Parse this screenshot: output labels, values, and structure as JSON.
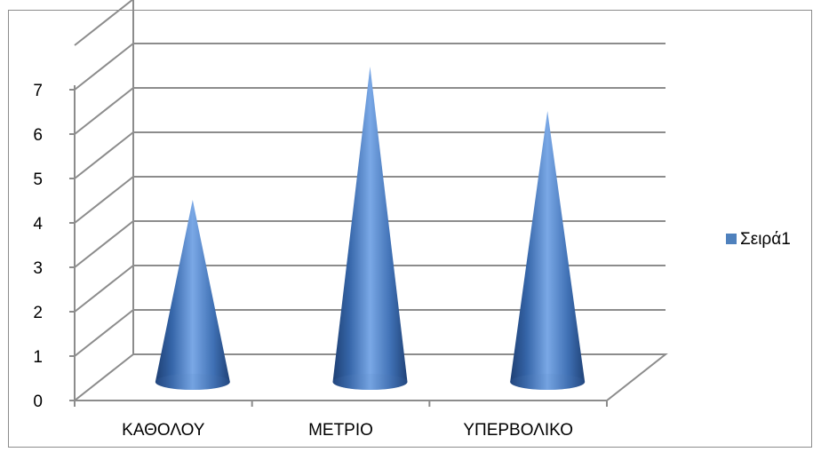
{
  "chart_data": {
    "type": "bar",
    "shape": "cone-3d",
    "categories": [
      "ΚΑΘΟΛΟΥ",
      "ΜΕΤΡΙΟ",
      "ΥΠΕΡΒΟΛΙΚΟ"
    ],
    "series": [
      {
        "name": "Σειρά1",
        "values": [
          4,
          7,
          6
        ],
        "color": "#4F81BD"
      }
    ],
    "ylim": [
      0,
      7
    ],
    "yticks": [
      "0",
      "1",
      "2",
      "3",
      "4",
      "5",
      "6",
      "7"
    ],
    "grid": true,
    "legend": "right"
  }
}
